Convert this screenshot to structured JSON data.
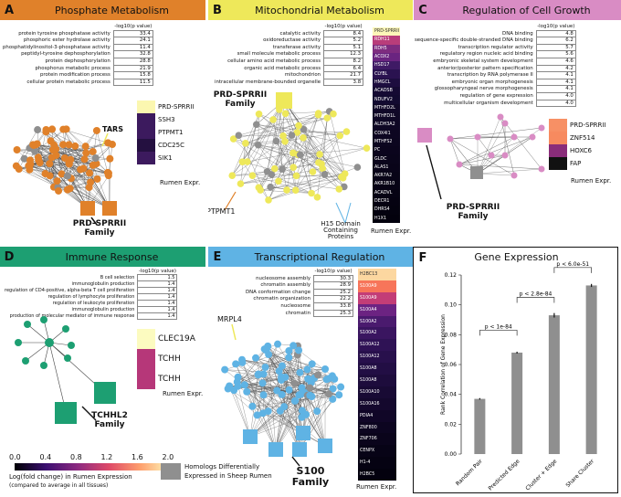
{
  "colors": {
    "orange": "#e0812a",
    "yellow": "#eee85a",
    "pink": "#d98cc4",
    "green": "#1d9f72",
    "blue": "#5fb3e4",
    "gray": "#8f8f8f"
  },
  "panelA": {
    "letter": "A",
    "title": "Phosphate Metabolism",
    "col_head": "-log10(p value)",
    "rows": [
      [
        "protein tyrosine phosphatase activity",
        "33.4"
      ],
      [
        "phosphoric ester hydrolase activity",
        "24.1"
      ],
      [
        "phosphatidylinositol-3-phosphatase activity",
        "11.4"
      ],
      [
        "peptidyl-tyrosine dephosphorylation",
        "32.8"
      ],
      [
        "protein dephosphorylation",
        "28.8"
      ],
      [
        "phosphorus metabolic process",
        "21.9"
      ],
      [
        "protein modification process",
        "15.8"
      ],
      [
        "cellular protein metabolic process",
        "11.5"
      ]
    ],
    "node_label": "TARS",
    "family": "PRD-SPRRII\nFamily",
    "legend": [
      "PRD-SPRRII",
      "SSH3",
      "PTPMT1",
      "CDC25C",
      "SIK1"
    ],
    "legend_title": "Rumen Expr."
  },
  "panelB": {
    "letter": "B",
    "title": "Mitochondrial Metabolism",
    "col_head": "-log10(p value)",
    "rows": [
      [
        "catalytic activity",
        "8.4"
      ],
      [
        "oxidoreductase activity",
        "5.2"
      ],
      [
        "transferase activity",
        "5.1"
      ],
      [
        "small molecule metabolic process",
        "12.3"
      ],
      [
        "cellular amino acid metabolic process",
        "8.2"
      ],
      [
        "organic acid metabolic process",
        "6.4"
      ],
      [
        "mitochondrion",
        "21.7"
      ],
      [
        "intracellular membrane-bounded organelle",
        "3.8"
      ]
    ],
    "family": "PRD-SPRRII\nFamily",
    "node_label": "PTPMT1",
    "domain_label": "H15 Domain\nContaining\nProteins",
    "bar_labels": [
      "PRD-SPRRII",
      "RDH11",
      "RDH5",
      "ACOX2",
      "HSD17",
      "CLYBL",
      "HMGCL",
      "ACADSB",
      "NDUFV2",
      "MTHFD2L",
      "MTHFD1L",
      "ALDH3A2",
      "COX4I1",
      "MTHFS2",
      "PC",
      "GLDC",
      "ALAS1",
      "AKR7A2",
      "AKR1B10",
      "ACADVL",
      "DECR1",
      "DHRS4",
      "H1X1"
    ],
    "legend_title": "Rumen Expr."
  },
  "panelC": {
    "letter": "C",
    "title": "Regulation of Cell Growth",
    "col_head": "-log10(p value)",
    "rows": [
      [
        "DNA binding",
        "4.8"
      ],
      [
        "sequence-specific double-stranded DNA binding",
        "6.2"
      ],
      [
        "transcription regulator activity",
        "5.7"
      ],
      [
        "regulatory region nucleic acid binding",
        "5.6"
      ],
      [
        "embryonic skeletal system development",
        "4.6"
      ],
      [
        "anterior/posterior pattern specification",
        "4.2"
      ],
      [
        "transcription by RNA polymerase II",
        "4.1"
      ],
      [
        "embryonic organ morphogenesis",
        "4.1"
      ],
      [
        "glossopharyngeal nerve morphogenesis",
        "4.1"
      ],
      [
        "regulation of gene expression",
        "4.0"
      ],
      [
        "multicellular organism development",
        "4.0"
      ]
    ],
    "family": "PRD-SPRRII\nFamily",
    "legend": [
      "PRD-SPRRII",
      "ZNF514",
      "HOXC6",
      "FAP"
    ],
    "legend_title": "Rumen Expr."
  },
  "panelD": {
    "letter": "D",
    "title": "Immune Response",
    "col_head": "-log10(p value)",
    "rows": [
      [
        "B cell selection",
        "1.5"
      ],
      [
        "immunoglobulin production",
        "1.4"
      ],
      [
        "regulation of CD4-positive, alpha-beta T cell proliferation",
        "1.4"
      ],
      [
        "regulation of lymphocyte proliferation",
        "1.4"
      ],
      [
        "regulation of leukocyte proliferation",
        "1.4"
      ],
      [
        "immunoglobulin production",
        "1.4"
      ],
      [
        "production of molecular mediator of immune response",
        "1.4"
      ]
    ],
    "family": "TCHHL2\nFamily",
    "legend": [
      "CLEC19A",
      "TCHH",
      "TCHH"
    ],
    "legend_title": "Rumen Expr.",
    "scale_ticks": [
      "0.0",
      "0.4",
      "0.8",
      "1.2",
      "1.6",
      "2.0"
    ],
    "scale_caption_1": "Log(fold change) in Rumen Expression",
    "scale_caption_2": "(compared to average in all tissues)",
    "gray_caption_1": "Homologs Differentially",
    "gray_caption_2": "Expressed in Sheep Rumen"
  },
  "panelE": {
    "letter": "E",
    "title": "Transcriptional Regulation",
    "col_head": "-log10(p value)",
    "rows": [
      [
        "nucleosome assembly",
        "30.3"
      ],
      [
        "chromatin assembly",
        "28.9"
      ],
      [
        "DNA conformation change",
        "25.2"
      ],
      [
        "chromatin organization",
        "22.2"
      ],
      [
        "nucleosome",
        "33.8"
      ],
      [
        "chromatin",
        "25.3"
      ]
    ],
    "node_label": "MRPL4",
    "family": "S100\nFamily",
    "bar_labels": [
      "H2BC13",
      "S100A9",
      "S100A9",
      "S100A4",
      "S100A2",
      "S100A2",
      "S100A12",
      "S100A12",
      "S100A8",
      "S100A8",
      "S100A10",
      "S100A16",
      "PDIA4",
      "ZNF800",
      "ZNF706",
      "CENPX",
      "H1-4",
      "H2BC5"
    ],
    "legend_title": "Rumen Expr."
  },
  "panelF": {
    "letter": "F",
    "title": "Gene Expression",
    "ylabel": "Rank Correlation of Gene Expression",
    "chart_data": {
      "type": "bar",
      "categories": [
        "Random Pair",
        "Predicted Edge",
        "Cluster + Edge",
        "Share Cluster"
      ],
      "values": [
        0.037,
        0.068,
        0.093,
        0.113
      ],
      "errors": [
        0.0005,
        0.0006,
        0.0015,
        0.001
      ],
      "ylim": [
        0,
        0.12
      ],
      "yticks": [
        "0.00",
        "0.02",
        "0.04",
        "0.06",
        "0.08",
        "0.10",
        "0.12"
      ],
      "annotations": [
        "p < 1e-84",
        "p < 2.8e-84",
        "p < 6.0e-51"
      ]
    }
  }
}
